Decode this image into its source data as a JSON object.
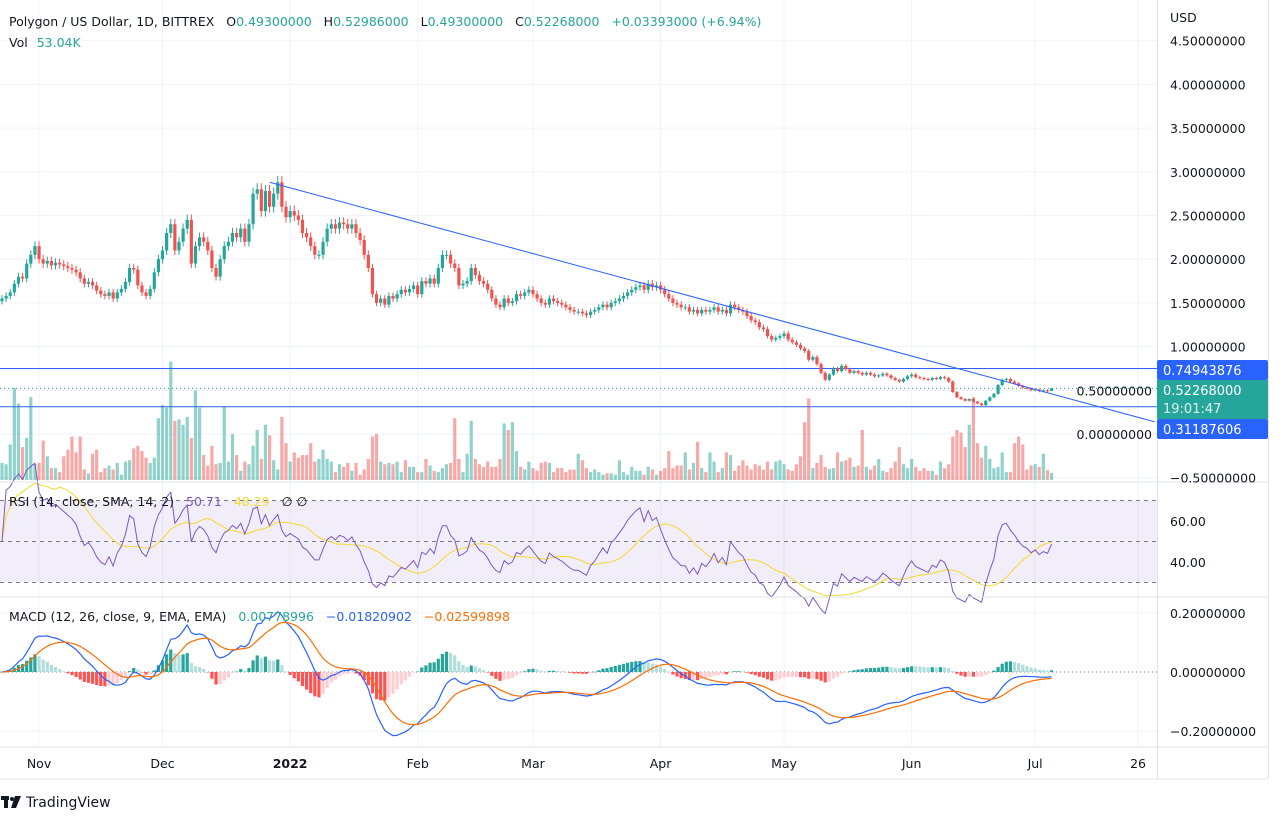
{
  "header": {
    "symbol": "Polygon / US Dollar, 1D, BITTREX",
    "open_label": "O",
    "open": "0.49300000",
    "high_label": "H",
    "high": "0.52986000",
    "low_label": "L",
    "low": "0.49300000",
    "close_label": "C",
    "close": "0.52268000",
    "change": "+0.03393000 (+6.94%)",
    "vol_label": "Vol",
    "vol": "53.04K"
  },
  "price_axis": {
    "currency": "USD",
    "ticks": [
      "4.50000000",
      "4.00000000",
      "3.50000000",
      "3.00000000",
      "2.50000000",
      "2.00000000",
      "1.50000000",
      "1.00000000",
      "0.50000000",
      "0.00000000",
      "−0.50000000"
    ],
    "tick_values": [
      4.5,
      4.0,
      3.5,
      3.0,
      2.5,
      2.0,
      1.5,
      1.0,
      0.5,
      0.0,
      -0.5
    ]
  },
  "price_labels": {
    "resistance": "0.74943876",
    "current": "0.52268000",
    "countdown": "19:01:47",
    "support": "0.31187606"
  },
  "rsi": {
    "legend": "RSI (14, close, SMA, 14, 2)",
    "value": "50.71",
    "ma_value": "48.29",
    "extra": "∅  ∅",
    "ticks": [
      "60.00",
      "40.00"
    ],
    "tick_values": [
      60,
      40
    ],
    "levels": [
      70,
      50,
      30
    ]
  },
  "macd": {
    "legend": "MACD (12, 26, close, 9, EMA, EMA)",
    "hist_value": "0.00778996",
    "macd_value": "−0.01820902",
    "signal_value": "−0.02599898",
    "ticks": [
      "0.20000000",
      "0.00000000",
      "−0.20000000"
    ],
    "tick_values": [
      0.2,
      0,
      -0.2
    ]
  },
  "time_axis": {
    "labels": [
      {
        "label": "Nov",
        "date": "2021-11-01",
        "bold": false
      },
      {
        "label": "Dec",
        "date": "2021-12-01",
        "bold": false
      },
      {
        "label": "2022",
        "date": "2022-01-01",
        "bold": true
      },
      {
        "label": "Feb",
        "date": "2022-02-01",
        "bold": false
      },
      {
        "label": "Mar",
        "date": "2022-03-01",
        "bold": false
      },
      {
        "label": "Apr",
        "date": "2022-04-01",
        "bold": false
      },
      {
        "label": "May",
        "date": "2022-05-01",
        "bold": false
      },
      {
        "label": "Jun",
        "date": "2022-06-01",
        "bold": false
      },
      {
        "label": "Jul",
        "date": "2022-07-01",
        "bold": false
      },
      {
        "label": "26",
        "date": "2022-07-26",
        "bold": false
      }
    ]
  },
  "footer": {
    "brand": "TradingView"
  },
  "colors": {
    "up": "#26a69a",
    "down": "#ef5350",
    "line_blue": "#2962ff",
    "rsi": "#7e57c2",
    "rsi_ma": "#f2d930",
    "macd": "#2962ff",
    "signal": "#ff6d00",
    "text": "#131722"
  },
  "chart_data": {
    "type": "candlestick",
    "interval": "1D",
    "xlim": [
      "2021-10-23",
      "2022-07-05"
    ],
    "ylim": [
      -0.5,
      4.6
    ],
    "grid": true,
    "last_candle": {
      "open": 0.493,
      "high": 0.52986,
      "low": 0.493,
      "close": 0.52268
    },
    "close": [
      1.55,
      1.58,
      1.62,
      1.72,
      1.8,
      1.78,
      1.95,
      2.05,
      2.15,
      2.0,
      1.95,
      1.98,
      1.93,
      1.96,
      1.94,
      1.92,
      1.9,
      1.88,
      1.85,
      1.78,
      1.72,
      1.74,
      1.7,
      1.64,
      1.6,
      1.58,
      1.62,
      1.55,
      1.62,
      1.66,
      1.74,
      1.9,
      1.88,
      1.7,
      1.62,
      1.58,
      1.66,
      1.85,
      2.0,
      2.1,
      2.3,
      2.4,
      2.1,
      2.2,
      2.35,
      2.45,
      1.95,
      2.15,
      2.25,
      2.2,
      2.1,
      1.9,
      1.8,
      2.0,
      2.15,
      2.2,
      2.3,
      2.25,
      2.35,
      2.2,
      2.4,
      2.75,
      2.8,
      2.55,
      2.78,
      2.6,
      2.75,
      2.88,
      2.6,
      2.48,
      2.55,
      2.5,
      2.45,
      2.3,
      2.25,
      2.15,
      2.05,
      2.05,
      2.2,
      2.35,
      2.4,
      2.35,
      2.42,
      2.4,
      2.35,
      2.4,
      2.3,
      2.22,
      2.05,
      1.9,
      1.6,
      1.5,
      1.55,
      1.48,
      1.58,
      1.55,
      1.6,
      1.65,
      1.62,
      1.66,
      1.7,
      1.6,
      1.75,
      1.72,
      1.78,
      1.72,
      1.9,
      2.05,
      2.05,
      1.95,
      1.9,
      1.7,
      1.72,
      1.75,
      1.9,
      1.82,
      1.75,
      1.72,
      1.65,
      1.55,
      1.48,
      1.45,
      1.55,
      1.5,
      1.52,
      1.6,
      1.58,
      1.62,
      1.65,
      1.6,
      1.55,
      1.5,
      1.48,
      1.55,
      1.52,
      1.5,
      1.48,
      1.45,
      1.42,
      1.4,
      1.4,
      1.38,
      1.36,
      1.4,
      1.42,
      1.45,
      1.48,
      1.45,
      1.5,
      1.52,
      1.55,
      1.58,
      1.62,
      1.65,
      1.68,
      1.7,
      1.65,
      1.72,
      1.68,
      1.7,
      1.65,
      1.6,
      1.55,
      1.5,
      1.48,
      1.45,
      1.45,
      1.4,
      1.42,
      1.38,
      1.42,
      1.4,
      1.42,
      1.45,
      1.4,
      1.42,
      1.38,
      1.48,
      1.45,
      1.42,
      1.4,
      1.35,
      1.3,
      1.28,
      1.22,
      1.2,
      1.12,
      1.08,
      1.1,
      1.12,
      1.15,
      1.08,
      1.05,
      1.02,
      0.98,
      0.95,
      0.85,
      0.88,
      0.8,
      0.7,
      0.62,
      0.68,
      0.75,
      0.72,
      0.78,
      0.74,
      0.7,
      0.72,
      0.7,
      0.68,
      0.7,
      0.68,
      0.66,
      0.67,
      0.69,
      0.67,
      0.64,
      0.62,
      0.6,
      0.63,
      0.66,
      0.68,
      0.65,
      0.64,
      0.63,
      0.62,
      0.64,
      0.63,
      0.65,
      0.64,
      0.6,
      0.48,
      0.42,
      0.4,
      0.38,
      0.4,
      0.37,
      0.35,
      0.33,
      0.38,
      0.42,
      0.46,
      0.56,
      0.62,
      0.63,
      0.6,
      0.58,
      0.55,
      0.53,
      0.52,
      0.5,
      0.51,
      0.49,
      0.5,
      0.493,
      0.52268
    ],
    "volume_k": [
      130,
      120,
      270,
      700,
      580,
      250,
      320,
      630,
      120,
      130,
      300,
      180,
      90,
      90,
      60,
      180,
      230,
      330,
      210,
      330,
      80,
      50,
      200,
      230,
      60,
      90,
      110,
      80,
      130,
      40,
      140,
      150,
      240,
      260,
      220,
      170,
      130,
      170,
      470,
      570,
      550,
      900,
      450,
      460,
      420,
      480,
      320,
      680,
      550,
      190,
      110,
      260,
      120,
      130,
      560,
      140,
      350,
      190,
      70,
      140,
      120,
      260,
      380,
      160,
      420,
      340,
      150,
      80,
      480,
      280,
      140,
      210,
      170,
      190,
      190,
      280,
      140,
      160,
      230,
      160,
      140,
      60,
      120,
      100,
      130,
      70,
      130,
      40,
      80,
      160,
      330,
      350,
      140,
      120,
      130,
      120,
      140,
      60,
      150,
      100,
      100,
      60,
      60,
      160,
      110,
      70,
      60,
      90,
      120,
      130,
      470,
      160,
      60,
      200,
      450,
      160,
      120,
      100,
      140,
      100,
      100,
      160,
      430,
      380,
      440,
      220,
      100,
      80,
      140,
      90,
      70,
      130,
      140,
      130,
      60,
      90,
      90,
      60,
      80,
      80,
      200,
      150,
      90,
      60,
      80,
      60,
      40,
      50,
      50,
      40,
      150,
      60,
      40,
      100,
      70,
      70,
      40,
      100,
      80,
      40,
      70,
      90,
      220,
      90,
      110,
      110,
      210,
      80,
      130,
      290,
      90,
      60,
      210,
      140,
      60,
      90,
      210,
      190,
      70,
      110,
      150,
      110,
      80,
      120,
      110,
      80,
      140,
      80,
      140,
      150,
      120,
      80,
      70,
      120,
      180,
      440,
      620,
      90,
      130,
      190,
      100,
      85,
      90,
      210,
      140,
      150,
      170,
      100,
      110,
      380,
      100,
      80,
      110,
      160,
      70,
      60,
      90,
      140,
      250,
      120,
      90,
      160,
      100,
      70,
      90,
      70,
      70,
      40,
      140,
      90,
      120,
      330,
      380,
      360,
      250,
      420,
      630,
      280,
      170,
      260,
      160,
      90,
      100,
      210,
      60,
      60,
      280,
      330,
      270,
      80,
      110,
      120,
      100,
      200,
      75,
      53.04
    ],
    "trendline": [
      {
        "date": "2021-12-27",
        "price": 2.88
      },
      {
        "date": "2022-07-30",
        "price": 0.14
      }
    ],
    "horizontal_lines": [
      0.74943876,
      0.31187606
    ]
  }
}
